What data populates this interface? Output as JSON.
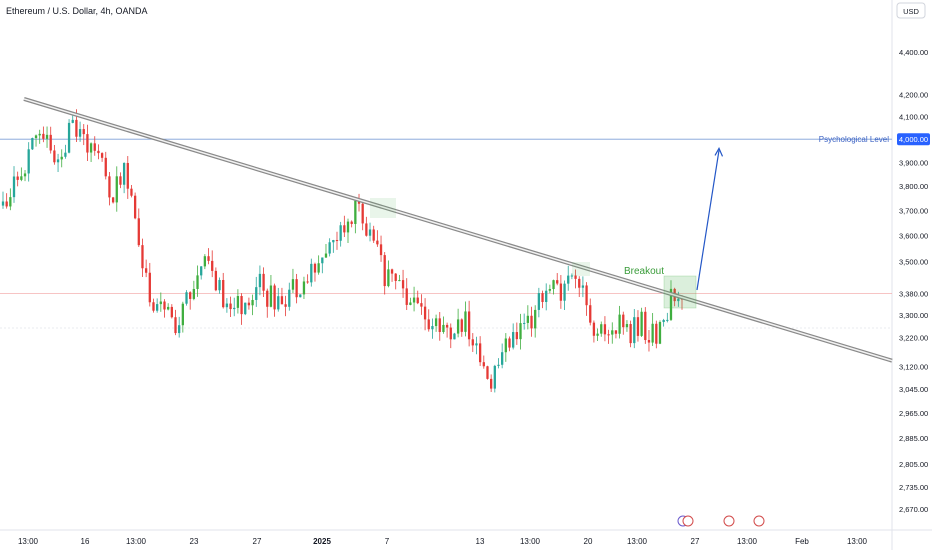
{
  "header": {
    "title": "Ethereum / U.S. Dollar, 4h, OANDA",
    "currency_button": "USD"
  },
  "colors": {
    "up": "#26a69a",
    "up_bright": "#3fae3f",
    "down": "#e53935",
    "trendline": "#8a8a8a",
    "psych_line": "#7e9fd8",
    "psych_label": "#3d63c4",
    "arrow": "#2457c7",
    "breakout_text": "#3a9c3a",
    "price_line": "#f2a0a0"
  },
  "chart_data": {
    "type": "candlestick",
    "symbol": "ETHUSD",
    "interval": "4h",
    "source": "OANDA",
    "x_ticks": [
      "13:00",
      "16",
      "13:00",
      "23",
      "27",
      "2025",
      "7",
      "13",
      "13:00",
      "20",
      "13:00",
      "27",
      "13:00",
      "Feb",
      "13:00"
    ],
    "y_ticks": [
      4400,
      4200,
      4100,
      4000,
      3900,
      3800,
      3700,
      3600,
      3500,
      3380,
      3300,
      3220,
      3120,
      3045,
      2965,
      2885,
      2805,
      2735,
      2670
    ],
    "y_tick_labels": [
      "4,400.00",
      "4,200.00",
      "4,100.00",
      "4,000.00",
      "3,900.00",
      "3,800.00",
      "3,700.00",
      "3,600.00",
      "3,500.00",
      "3,380.00",
      "3,300.00",
      "3,220.00",
      "3,120.00",
      "3,045.00",
      "2,965.00",
      "2,885.00",
      "2,805.00",
      "2,735.00",
      "2,670.00"
    ],
    "y_scale": "log",
    "close_path": [
      3720,
      3820,
      3960,
      3990,
      3920,
      4050,
      4010,
      3920,
      3750,
      3850,
      3600,
      3300,
      3320,
      3260,
      3420,
      3480,
      3380,
      3330,
      3360,
      3410,
      3340,
      3390,
      3430,
      3480,
      3520,
      3660,
      3700,
      3620,
      3460,
      3400,
      3340,
      3300,
      3290,
      3240,
      3290,
      3150,
      3040,
      3210,
      3260,
      3290,
      3420,
      3360,
      3480,
      3310,
      3230,
      3280,
      3230,
      3270,
      3230,
      3340,
      3400
    ],
    "psychological_level": {
      "value": 4000,
      "label": "Psychological Level",
      "axis_label": "4,000.00"
    },
    "current_price": 3380,
    "annotations": {
      "breakout": "Breakout",
      "trendline": {
        "from": {
          "x": "~13 Dec",
          "y": 4180
        },
        "to": {
          "x": "~3 Feb",
          "y": 3140
        }
      },
      "projection_target": 3960
    }
  }
}
